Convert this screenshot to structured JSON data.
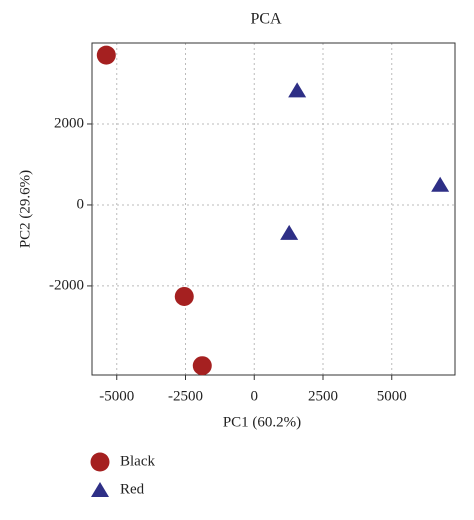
{
  "chart_data": {
    "type": "scatter",
    "title": "PCA",
    "x_label": "PC1 (60.2%)",
    "y_label": "PC2 (29.6%)",
    "xlim": [
      -5900,
      7300
    ],
    "ylim": [
      -4200,
      4000
    ],
    "xticks": [
      -5000,
      -2500,
      0,
      2500,
      5000
    ],
    "yticks": [
      -2000,
      0,
      2000
    ],
    "grid": true,
    "series": [
      {
        "name": "Black",
        "color": "#a52020",
        "marker": "circle",
        "x": [
          -5380,
          -2545,
          -1890
        ],
        "y": [
          3700,
          -2260,
          -3970
        ]
      },
      {
        "name": "Red",
        "color": "#2e2f86",
        "marker": "triangle",
        "x": [
          1560,
          6760,
          1270
        ],
        "y": [
          2830,
          500,
          -690
        ]
      }
    ]
  }
}
